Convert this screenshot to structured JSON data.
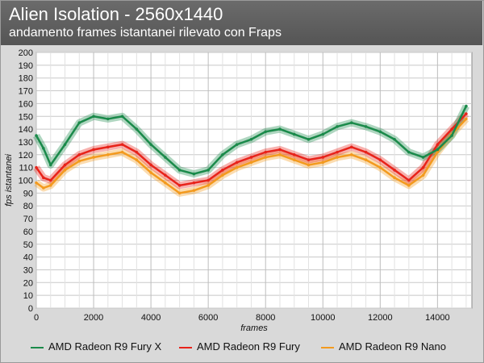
{
  "chart_data": {
    "type": "line",
    "title": "Alien Isolation - 2560x1440",
    "subtitle": "andamento frames istantanei rilevato con Fraps",
    "xlabel": "frames",
    "ylabel": "fps istantanei",
    "xlim": [
      0,
      15200
    ],
    "ylim": [
      0,
      200
    ],
    "x_ticks": [
      0,
      2000,
      4000,
      6000,
      8000,
      10000,
      12000,
      14000
    ],
    "y_ticks": [
      0,
      10,
      20,
      30,
      40,
      50,
      60,
      70,
      80,
      90,
      100,
      110,
      120,
      130,
      140,
      150,
      160,
      170,
      180,
      190,
      200
    ],
    "grid": true,
    "legend_position": "bottom",
    "x": [
      0,
      250,
      500,
      1000,
      1500,
      2000,
      2500,
      3000,
      3500,
      4000,
      4500,
      5000,
      5500,
      6000,
      6500,
      7000,
      7500,
      8000,
      8500,
      9000,
      9500,
      10000,
      10500,
      11000,
      11500,
      12000,
      12500,
      13000,
      13500,
      14000,
      14500,
      15000
    ],
    "series": [
      {
        "name": "AMD Radeon R9 Fury X",
        "color": "#1a8a4a",
        "values": [
          135,
          125,
          112,
          128,
          145,
          150,
          148,
          150,
          140,
          128,
          118,
          108,
          105,
          108,
          120,
          128,
          132,
          138,
          140,
          136,
          132,
          136,
          142,
          145,
          142,
          138,
          132,
          122,
          118,
          124,
          135,
          158
        ]
      },
      {
        "name": "AMD Radeon R9 Fury",
        "color": "#e8231a",
        "values": [
          110,
          102,
          100,
          112,
          120,
          124,
          126,
          128,
          122,
          112,
          104,
          96,
          98,
          100,
          108,
          114,
          118,
          122,
          124,
          120,
          116,
          118,
          122,
          126,
          122,
          116,
          108,
          100,
          110,
          128,
          140,
          152
        ]
      },
      {
        "name": "AMD Radeon R9 Nano",
        "color": "#f39a1e",
        "values": [
          98,
          94,
          96,
          108,
          115,
          118,
          120,
          122,
          116,
          106,
          98,
          90,
          92,
          96,
          104,
          110,
          114,
          118,
          120,
          116,
          112,
          114,
          118,
          120,
          116,
          110,
          102,
          96,
          104,
          122,
          136,
          148
        ]
      }
    ]
  }
}
